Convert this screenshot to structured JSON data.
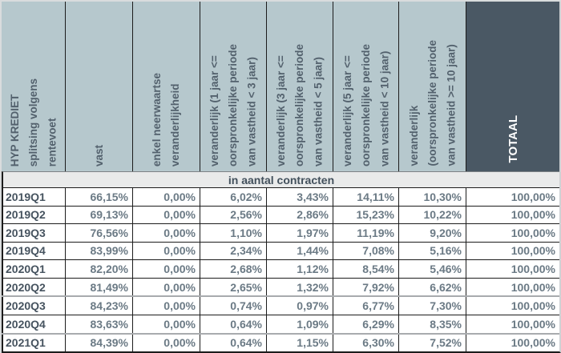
{
  "table": {
    "header": {
      "columns": [
        {
          "id": "split-rentevoet",
          "label": "HYP KREDIET\nsplitsing volgens\nrentevoet"
        },
        {
          "id": "vast",
          "label": "vast"
        },
        {
          "id": "enkel-neerwaarts",
          "label": "enkel neerwaartse\nveranderlijkheid"
        },
        {
          "id": "veranderlijk-1-3",
          "label": "veranderlijk (1 jaar <=\noorspronkelijke periode\nvan vastheid < 3 jaar)"
        },
        {
          "id": "veranderlijk-3-5",
          "label": "veranderlijk (3 jaar <=\noorspronkelijke periode\nvan vastheid < 5 jaar)"
        },
        {
          "id": "veranderlijk-5-10",
          "label": "veranderlijk (5 jaar <=\noorspronkelijke periode\nvan vastheid < 10 jaar)"
        },
        {
          "id": "veranderlijk-10-plus",
          "label": "veranderlijk\n(oorspronkelijke periode\nvan vastheid >= 10 jaar)"
        },
        {
          "id": "totaal",
          "label": "TOTAAL"
        }
      ]
    },
    "section_label": "in aantal contracten",
    "rows": [
      {
        "period": "2019Q1",
        "values": [
          "66,15%",
          "0,00%",
          "6,02%",
          "3,43%",
          "14,11%",
          "10,30%",
          "100,00%"
        ]
      },
      {
        "period": "2019Q2",
        "values": [
          "69,13%",
          "0,00%",
          "2,56%",
          "2,86%",
          "15,23%",
          "10,22%",
          "100,00%"
        ]
      },
      {
        "period": "2019Q3",
        "values": [
          "76,56%",
          "0,00%",
          "1,10%",
          "1,97%",
          "11,19%",
          "9,20%",
          "100,00%"
        ]
      },
      {
        "period": "2019Q4",
        "values": [
          "83,99%",
          "0,00%",
          "2,34%",
          "1,44%",
          "7,08%",
          "5,16%",
          "100,00%"
        ]
      },
      {
        "period": "2020Q1",
        "values": [
          "82,20%",
          "0,00%",
          "2,68%",
          "1,12%",
          "8,54%",
          "5,46%",
          "100,00%"
        ]
      },
      {
        "period": "2020Q2",
        "values": [
          "81,49%",
          "0,00%",
          "2,65%",
          "1,32%",
          "7,92%",
          "6,62%",
          "100,00%"
        ]
      },
      {
        "period": "2020Q3",
        "values": [
          "84,23%",
          "0,00%",
          "0,74%",
          "0,97%",
          "6,77%",
          "7,30%",
          "100,00%"
        ]
      },
      {
        "period": "2020Q4",
        "values": [
          "83,63%",
          "0,00%",
          "0,64%",
          "1,09%",
          "6,29%",
          "8,35%",
          "100,00%"
        ]
      },
      {
        "period": "2021Q1",
        "values": [
          "84,39%",
          "0,00%",
          "0,64%",
          "1,15%",
          "6,30%",
          "7,52%",
          "100,00%"
        ]
      }
    ]
  },
  "colors": {
    "header_bg": "#b6c8cd",
    "header_text": "#53616d",
    "totaal_bg": "#4a5864",
    "totaal_text": "#ffffff",
    "band_bg": "#e9eaea",
    "band_text": "#42505c",
    "label_text": "#46535f",
    "value_text": "#6b7a85",
    "grid_dark": "#1c1c1c",
    "grid_gray": "#a8abae"
  }
}
